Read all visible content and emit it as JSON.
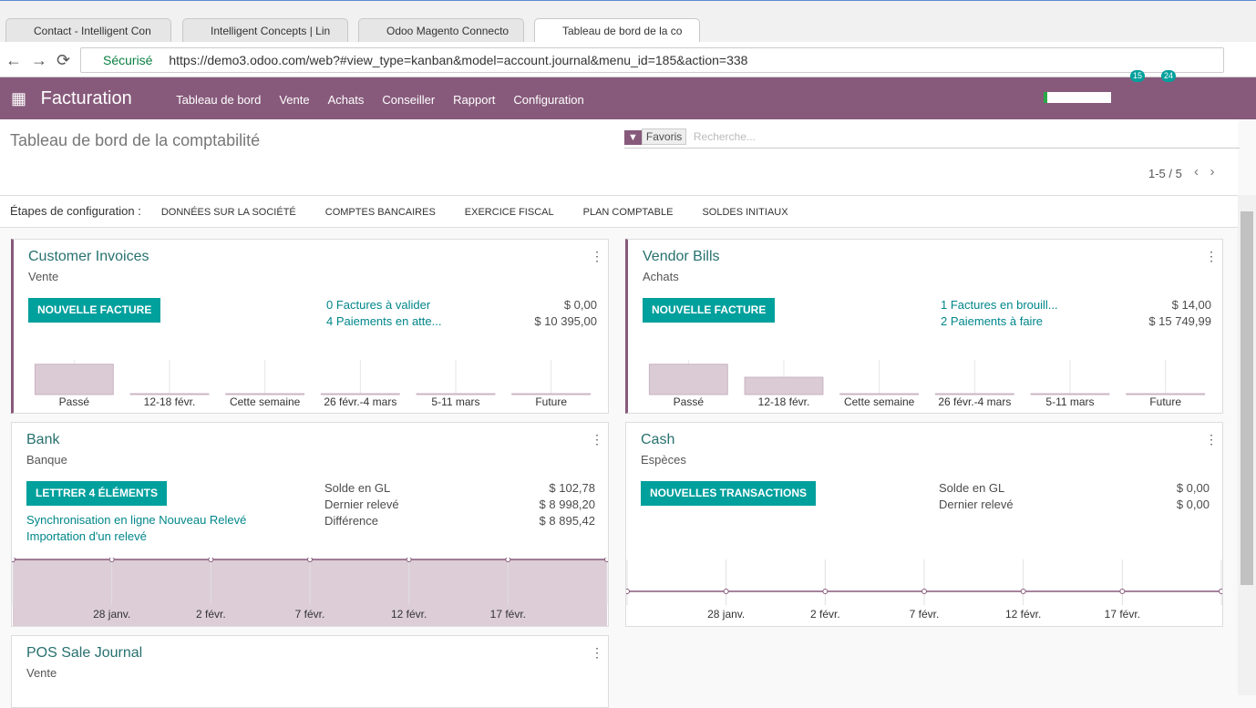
{
  "browser": {
    "tabs": [
      "Contact - Intelligent Con",
      "Intelligent Concepts | Lin",
      "Odoo Magento Connecto",
      "Tableau de bord de la co"
    ],
    "secure": "Sécurisé",
    "url": "https://demo3.odoo.com/web?#view_type=kanban&model=account.journal&menu_id=185&action=338"
  },
  "navbar": {
    "app": "Facturation",
    "menu": [
      "Tableau de bord",
      "Vente",
      "Achats",
      "Conseiller",
      "Rapport",
      "Configuration"
    ],
    "activity_count": "15",
    "message_count": "24"
  },
  "control_panel": {
    "title": "Tableau de bord de la comptabilité",
    "facet": "Favoris",
    "search_placeholder": "Recherche...",
    "pager": "1-5 / 5"
  },
  "setup": {
    "label": "Étapes de configuration :",
    "steps": [
      "DONNÉES SUR LA SOCIÉTÉ",
      "COMPTES BANCAIRES",
      "EXERCICE FISCAL",
      "PLAN COMPTABLE",
      "SOLDES INITIAUX"
    ]
  },
  "cards": [
    {
      "title": "Customer Invoices",
      "subtitle": "Vente",
      "button": "NOUVELLE FACTURE",
      "rows": [
        [
          "0 Factures à valider",
          "$ 0,00"
        ],
        [
          "4 Paiements en atte...",
          "$ 10 395,00"
        ]
      ]
    },
    {
      "title": "Vendor Bills",
      "subtitle": "Achats",
      "button": "NOUVELLE FACTURE",
      "rows": [
        [
          "1 Factures en brouill...",
          "$ 14,00"
        ],
        [
          "2 Paiements à faire",
          "$ 15 749,99"
        ]
      ]
    },
    {
      "title": "Bank",
      "subtitle": "Banque",
      "button": "LETTRER 4 ÉLÉMENTS",
      "rows": [
        [
          "Solde en GL",
          "$ 102,78"
        ],
        [
          "Dernier relevé",
          "$ 8 998,20"
        ],
        [
          "Différence",
          "$ 8 895,42"
        ]
      ],
      "links": [
        "Synchronisation en ligne Nouveau Relevé",
        "Importation d'un relevé"
      ]
    },
    {
      "title": "Cash",
      "subtitle": "Espèces",
      "button": "NOUVELLES TRANSACTIONS",
      "rows": [
        [
          "Solde en GL",
          "$ 0,00"
        ],
        [
          "Dernier relevé",
          "$ 0,00"
        ]
      ]
    },
    {
      "title": "POS Sale Journal",
      "subtitle": "Vente"
    }
  ],
  "chart_data": [
    {
      "type": "bar",
      "categories": [
        "Passé",
        "12-18 févr.",
        "Cette semaine",
        "26 févr.-4 mars",
        "5-11 mars",
        "Future"
      ],
      "values": [
        35,
        1,
        1,
        1,
        1,
        1
      ],
      "color": "#dacbd5",
      "ylim": [
        0,
        40
      ]
    },
    {
      "type": "bar",
      "categories": [
        "Passé",
        "12-18 févr.",
        "Cette semaine",
        "26 févr.-4 mars",
        "5-11 mars",
        "Future"
      ],
      "values": [
        35,
        20,
        1,
        1,
        1,
        1
      ],
      "color": "#dacbd5",
      "ylim": [
        0,
        40
      ]
    },
    {
      "type": "area",
      "categories": [
        null,
        "28 janv.",
        "2 févr.",
        "7 févr.",
        "12 févr.",
        "17 févr.",
        null
      ],
      "values": [
        102.78,
        102.78,
        102.78,
        102.78,
        102.78,
        102.78,
        102.78
      ],
      "color": "#875a7b",
      "ylim": [
        0,
        102.78
      ]
    },
    {
      "type": "line",
      "categories": [
        null,
        "28 janv.",
        "2 févr.",
        "7 févr.",
        "12 févr.",
        "17 févr.",
        null
      ],
      "values": [
        0,
        0,
        0,
        0,
        0,
        0,
        0
      ],
      "color": "#875a7b",
      "ylim": [
        -1,
        1
      ]
    }
  ]
}
